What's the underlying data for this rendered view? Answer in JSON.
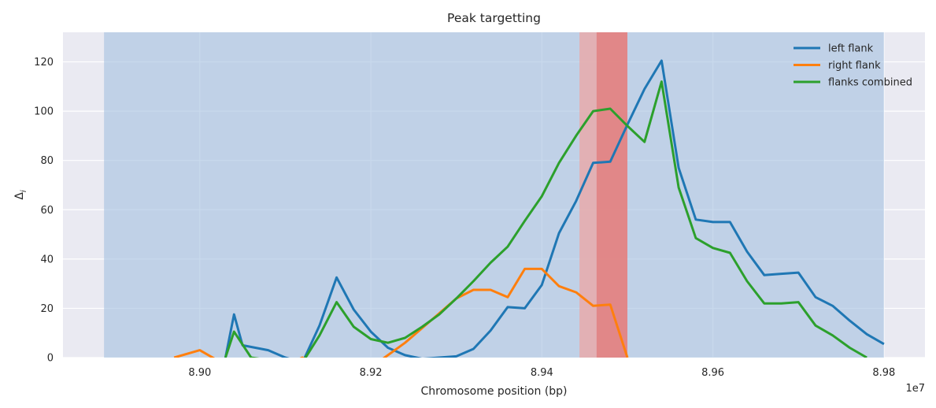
{
  "chart_data": {
    "type": "line",
    "title": "Peak targetting",
    "xlabel": "Chromosome position (bp)",
    "ylabel": "Δ",
    "ylabel_subscript": "i",
    "x_offset_text": "1e7",
    "xlim": [
      8.884,
      8.9848
    ],
    "ylim": [
      0,
      132
    ],
    "x_ticks": [
      8.9,
      8.92,
      8.94,
      8.96,
      8.98
    ],
    "x_tick_labels": [
      "8.90",
      "8.92",
      "8.94",
      "8.96",
      "8.98"
    ],
    "y_ticks": [
      0,
      20,
      40,
      60,
      80,
      100,
      120
    ],
    "y_tick_labels": [
      "0",
      "20",
      "40",
      "60",
      "80",
      "100",
      "120"
    ],
    "grid": true,
    "legend_position": "top-right",
    "shaded_regions": [
      {
        "x": [
          8.8888,
          8.98
        ],
        "color": "#a6c1e0"
      },
      {
        "x": [
          8.9444,
          8.95
        ],
        "color": "#e8aaaa"
      },
      {
        "x": [
          8.9464,
          8.95
        ],
        "color": "#e08080"
      }
    ],
    "series": [
      {
        "name": "left flank",
        "color": "#1f77b4",
        "x": [
          8.903,
          8.904,
          8.905,
          8.908,
          8.91,
          8.912,
          8.914,
          8.916,
          8.918,
          8.92,
          8.922,
          8.924,
          8.926,
          8.928,
          8.93,
          8.932,
          8.934,
          8.936,
          8.938,
          8.94,
          8.942,
          8.944,
          8.946,
          8.948,
          8.95,
          8.952,
          8.954,
          8.956,
          8.958,
          8.96,
          8.962,
          8.964,
          8.966,
          8.968,
          8.97,
          8.972,
          8.974,
          8.976,
          8.978,
          8.98
        ],
        "y": [
          0,
          17.5,
          5,
          3,
          0,
          -2,
          13,
          32.5,
          19.5,
          10.5,
          4,
          1,
          -0.5,
          0,
          0.5,
          3.5,
          11,
          20.5,
          20,
          29.5,
          50.5,
          63.5,
          79,
          79.5,
          94.5,
          109,
          120.5,
          77,
          56,
          55,
          55,
          43,
          33.5,
          34,
          34.5,
          24.5,
          21,
          15,
          9.5,
          5.5
        ]
      },
      {
        "name": "right flank",
        "color": "#ff7f0e",
        "x": [
          8.897,
          8.9,
          8.902,
          8.904,
          8.906,
          8.908,
          8.91,
          8.912,
          8.914,
          8.916,
          8.918,
          8.92,
          8.922,
          8.924,
          8.926,
          8.928,
          8.93,
          8.932,
          8.934,
          8.936,
          8.938,
          8.94,
          8.942,
          8.944,
          8.946,
          8.948,
          8.95
        ],
        "y": [
          0,
          3,
          -1,
          -3,
          -4,
          -4,
          -3,
          0,
          -4,
          -6,
          -5,
          -4,
          1,
          6,
          12,
          18,
          24,
          27.5,
          27.5,
          24.5,
          36,
          36,
          29,
          26.5,
          21,
          21.5,
          0
        ]
      },
      {
        "name": "flanks combined",
        "color": "#2ca02c",
        "x": [
          8.903,
          8.904,
          8.906,
          8.908,
          8.91,
          8.912,
          8.914,
          8.916,
          8.918,
          8.92,
          8.922,
          8.924,
          8.926,
          8.928,
          8.93,
          8.932,
          8.934,
          8.936,
          8.938,
          8.94,
          8.942,
          8.944,
          8.946,
          8.948,
          8.95,
          8.952,
          8.954,
          8.956,
          8.958,
          8.96,
          8.962,
          8.964,
          8.966,
          8.968,
          8.97,
          8.972,
          8.974,
          8.976,
          8.978
        ],
        "y": [
          0,
          10.5,
          0,
          -1,
          -3,
          -2,
          9,
          22.5,
          12.5,
          7.5,
          6,
          8,
          12.5,
          17.5,
          24,
          31,
          38.5,
          45,
          55.5,
          65.5,
          79,
          90,
          100,
          101,
          94,
          87.5,
          112,
          69,
          48.5,
          44.5,
          42.5,
          31,
          22,
          22,
          22.5,
          13,
          9,
          4,
          0
        ]
      }
    ]
  }
}
